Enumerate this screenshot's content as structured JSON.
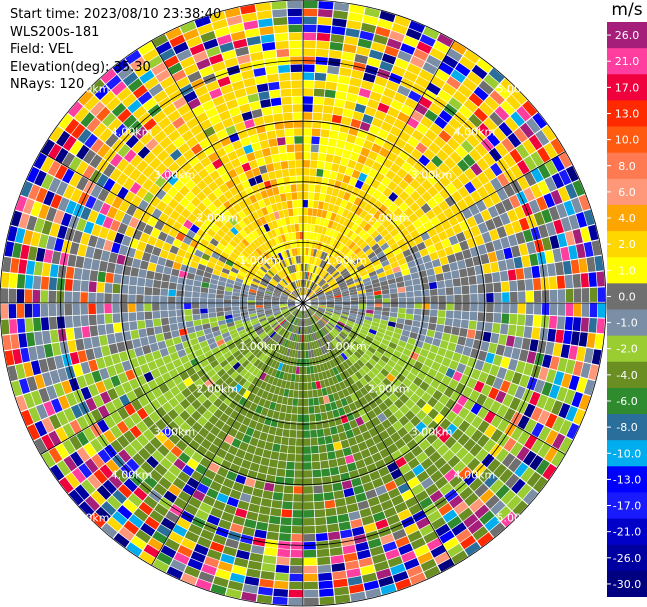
{
  "header": {
    "start_time": "Start time: 2023/08/10 23:38:40",
    "instrument": "WLS200s-181",
    "field": "Field: VEL",
    "elevation": "Elevation(deg): 35.30",
    "nrays": "NRays: 120"
  },
  "chart_data": {
    "type": "heatmap",
    "projection": "polar-ppi",
    "field": "VEL",
    "units": "m/s",
    "elevation_deg": 35.3,
    "n_rays": 120,
    "range_max_km": 5.0,
    "range_rings_km": [
      1,
      2,
      3,
      4,
      5
    ],
    "range_labels": [
      "1.00km",
      "2.00km",
      "3.00km",
      "4.00km",
      "5.00km"
    ],
    "spokes_deg": [
      0,
      30,
      60,
      90,
      120,
      150,
      180,
      210,
      240,
      270,
      300,
      330
    ],
    "colorbar": {
      "title": "m/s",
      "vmin": -30.0,
      "vmax": 30.0,
      "ticks": [
        "26.0",
        "21.0",
        "17.0",
        "13.0",
        "10.0",
        "8.0",
        "6.0",
        "4.0",
        "2.0",
        "1.0",
        "0.0",
        "-1.0",
        "-2.0",
        "-4.0",
        "-6.0",
        "-8.0",
        "-10.0",
        "-13.0",
        "-17.0",
        "-21.0",
        "-26.0",
        "-30.0"
      ],
      "colors": [
        "#a51e7a",
        "#ff3ea0",
        "#f0003c",
        "#ff2a00",
        "#ff5a10",
        "#ff7a50",
        "#ff9878",
        "#ffa500",
        "#ffd700",
        "#ffff00",
        "#6f6f6f",
        "#7a8ea6",
        "#9acd32",
        "#6b8e23",
        "#2e8b2e",
        "#2a6f9b",
        "#00aeef",
        "#0000ff",
        "#1a1aff",
        "#0000c8",
        "#0000a0",
        "#000080"
      ]
    }
  }
}
